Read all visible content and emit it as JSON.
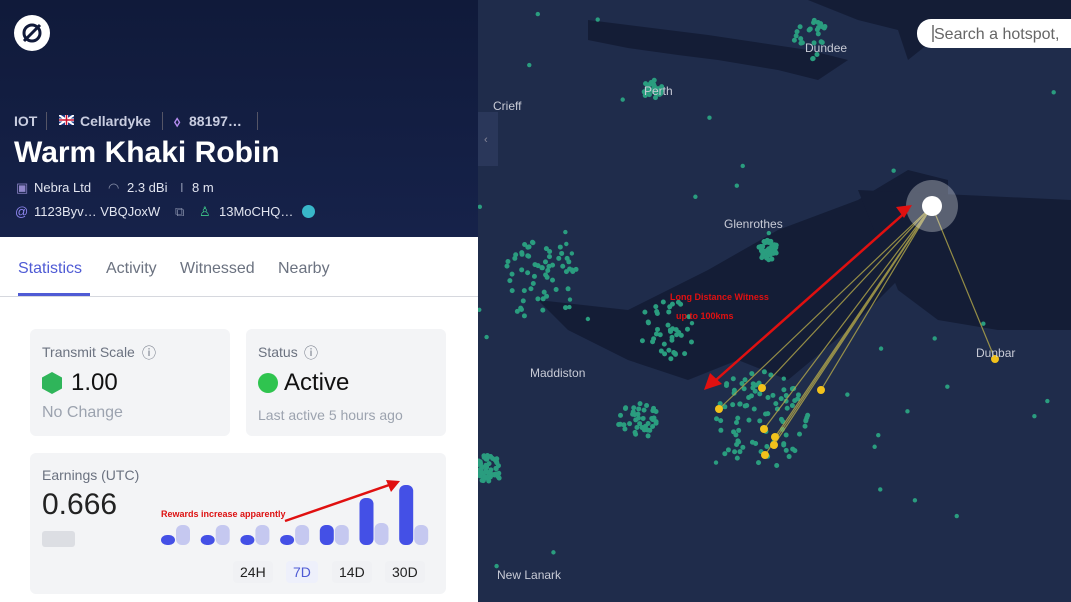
{
  "header": {
    "breadcrumb": [
      "IOT",
      "Cellardyke",
      "88197…"
    ],
    "title": "Warm Khaki Robin",
    "maker": "Nebra Ltd",
    "gain": "2.3 dBi",
    "elevation": "8 m",
    "owner": "1123Byv… VBQJoxW",
    "wallet": "13MoCHQ…"
  },
  "tabs": [
    "Statistics",
    "Activity",
    "Witnessed",
    "Nearby"
  ],
  "transmit_scale": {
    "label": "Transmit Scale",
    "value": "1.00",
    "change": "No Change"
  },
  "status": {
    "label": "Status",
    "value": "Active",
    "last_active": "Last active 5 hours ago"
  },
  "earnings": {
    "label": "Earnings (UTC)",
    "value": "0.666",
    "annotation": "Rewards increase apparently",
    "chart": {
      "series": [
        {
          "color": "#4450e6",
          "values": [
            10,
            10,
            10,
            10,
            20,
            47,
            60
          ]
        },
        {
          "color": "#c5c8f0",
          "values": [
            20,
            20,
            20,
            20,
            20,
            22,
            20
          ]
        }
      ]
    },
    "ranges": [
      "24H",
      "7D",
      "14D",
      "30D"
    ]
  },
  "map": {
    "search_placeholder": "Search a hotspot,",
    "places": [
      "Dundee",
      "Perth",
      "Crieff",
      "Glenrothes",
      "Dunbar",
      "Maddiston",
      "New Lanark"
    ],
    "annotation": [
      "Long Distance Witness",
      "up to 100kms"
    ]
  }
}
